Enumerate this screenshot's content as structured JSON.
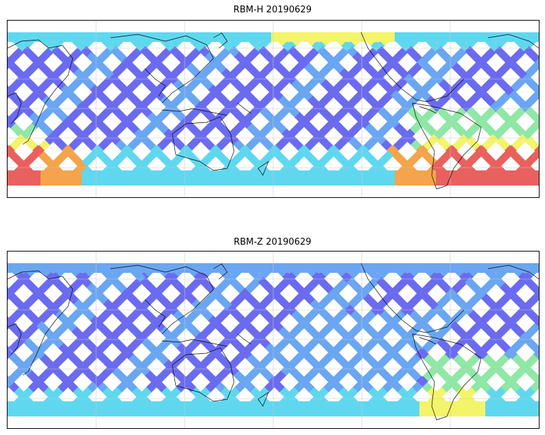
{
  "panels": [
    {
      "title": "RBM-H 20190629",
      "colors": {
        "low": "#6b6bf0",
        "lowmid": "#6aa6f2",
        "mid": "#5fd8ef",
        "midhigh": "#8fe8a6",
        "warm": "#f4f46a",
        "hot": "#f4a44a",
        "high": "#e8615e"
      },
      "gridlines": true
    },
    {
      "title": "RBM-Z 20190629",
      "colors": {
        "low": "#6b6bf0",
        "lowmid": "#6aa6f2",
        "mid": "#5fd8ef",
        "midhigh": "#8fe8a6",
        "warm": "#f4f46a",
        "hot": "#f4a44a",
        "high": "#e8615e"
      },
      "gridlines": true
    }
  ],
  "colors": {
    "coastline": "#000000",
    "gridline": "#c8c8c8",
    "frame": "#000000",
    "background": "#ffffff"
  }
}
